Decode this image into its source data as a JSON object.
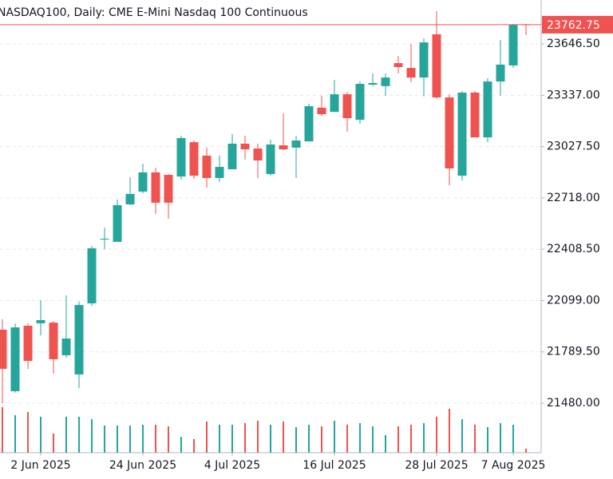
{
  "chart_data": {
    "type": "candlestick",
    "title": "NASDAQ100, Daily:  CME E-Mini Nasdaq 100 Continuous",
    "categories": [
      null,
      null,
      null,
      "2 Jun 2025",
      null,
      null,
      null,
      null,
      null,
      null,
      null,
      "24 Jun 2025",
      null,
      null,
      null,
      null,
      null,
      null,
      "4 Jul 2025",
      null,
      null,
      null,
      null,
      null,
      null,
      null,
      "16 Jul 2025",
      null,
      null,
      null,
      null,
      null,
      null,
      null,
      "28 Jul 2025",
      null,
      null,
      null,
      null,
      null,
      "7 Aug 2025",
      null
    ],
    "open": [
      21923,
      21552,
      21947,
      21962,
      21966,
      21769,
      21653,
      22082,
      22467,
      22453,
      22679,
      22756,
      22872,
      22857,
      22847,
      23054,
      22973,
      22838,
      22891,
      23045,
      23016,
      22862,
      23035,
      23021,
      23059,
      23262,
      23237,
      23343,
      23189,
      23401,
      23392,
      23531,
      23502,
      23444,
      23705,
      23324,
      22852,
      23353,
      23083,
      23420,
      23517,
      23765
    ],
    "high": [
      21986,
      21962,
      21962,
      22101,
      21976,
      22130,
      22092,
      22429,
      22539,
      22708,
      22843,
      22924,
      22900,
      22862,
      23093,
      23064,
      23021,
      22973,
      23103,
      23093,
      23045,
      23069,
      23228,
      23093,
      23286,
      23334,
      23430,
      23358,
      23420,
      23469,
      23469,
      23574,
      23647,
      23680,
      23844,
      23343,
      23363,
      23363,
      23440,
      23671,
      23767,
      23767
    ],
    "low": [
      21480,
      21543,
      21687,
      21889,
      21658,
      21754,
      21571,
      22067,
      22409,
      22453,
      22674,
      22746,
      22621,
      22592,
      22828,
      22833,
      22780,
      22814,
      22891,
      22949,
      22838,
      22852,
      23006,
      22838,
      23059,
      23213,
      23237,
      23117,
      23165,
      23392,
      23334,
      23469,
      23416,
      23331,
      23315,
      22794,
      22823,
      23083,
      23054,
      23334,
      23502,
      23700
    ],
    "close": [
      21687,
      21937,
      21735,
      21981,
      21745,
      21870,
      22072,
      22414,
      22472,
      22674,
      22742,
      22872,
      22689,
      22689,
      23079,
      22852,
      22838,
      22905,
      23045,
      23011,
      22944,
      23040,
      23011,
      23064,
      23271,
      23223,
      23343,
      23199,
      23406,
      23411,
      23444,
      23507,
      23444,
      23656,
      23324,
      22896,
      23353,
      23083,
      23420,
      23522,
      23762,
      23762.75
    ],
    "volume": [
      57,
      47,
      51,
      45,
      24,
      45,
      45,
      42,
      34,
      34,
      34,
      35,
      35,
      33,
      20,
      17,
      39,
      35,
      35,
      37,
      40,
      35,
      39,
      32,
      35,
      33,
      40,
      35,
      37,
      33,
      22,
      33,
      35,
      37,
      45,
      55,
      42,
      35,
      32,
      37,
      35,
      5
    ],
    "volume_lim": [
      0,
      100
    ],
    "last_price": 23762.75,
    "up_color": "#26a69a",
    "down_color": "#ef5350",
    "ylim": [
      21181.5,
      23911.6
    ],
    "yticks": [
      {
        "value": 21480,
        "label": "21480.00"
      },
      {
        "value": 21789.5,
        "label": "21789.50"
      },
      {
        "value": 22099,
        "label": "22099.00"
      },
      {
        "value": 22408.5,
        "label": "22408.50"
      },
      {
        "value": 22718,
        "label": "22718.00"
      },
      {
        "value": 23027.5,
        "label": "23027.50"
      },
      {
        "value": 23337,
        "label": "23337.00"
      },
      {
        "value": 23646.5,
        "label": "23646.50"
      }
    ],
    "grid": true
  }
}
